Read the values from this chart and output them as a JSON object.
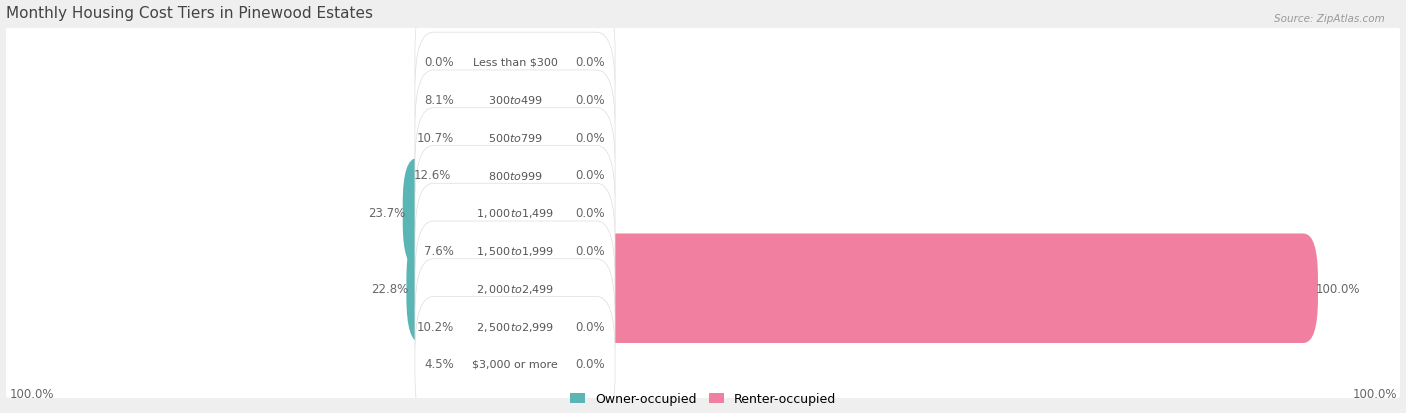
{
  "title": "Monthly Housing Cost Tiers in Pinewood Estates",
  "source": "Source: ZipAtlas.com",
  "categories": [
    "Less than $300",
    "$300 to $499",
    "$500 to $799",
    "$800 to $999",
    "$1,000 to $1,499",
    "$1,500 to $1,999",
    "$2,000 to $2,499",
    "$2,500 to $2,999",
    "$3,000 or more"
  ],
  "owner_values": [
    0.0,
    8.1,
    10.7,
    12.6,
    23.7,
    7.6,
    22.8,
    10.2,
    4.5
  ],
  "renter_values": [
    0.0,
    0.0,
    0.0,
    0.0,
    0.0,
    0.0,
    100.0,
    0.0,
    0.0
  ],
  "owner_color": "#5ab5b5",
  "renter_color": "#f07fa0",
  "bg_color": "#efefef",
  "row_bg_color": "#ffffff",
  "title_color": "#444444",
  "label_color": "#555555",
  "value_color": "#666666",
  "max_owner": 100.0,
  "max_renter": 100.0,
  "stub_size": 4.0,
  "legend_owner": "Owner-occupied",
  "legend_renter": "Renter-occupied"
}
